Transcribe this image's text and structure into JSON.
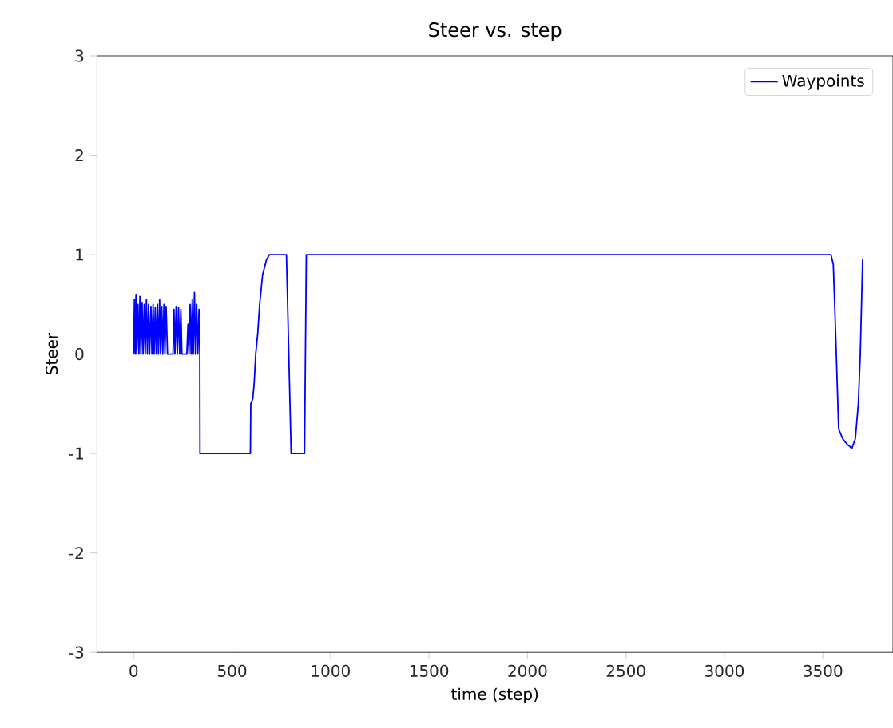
{
  "chart_data": {
    "type": "line",
    "title": "Steer vs. step",
    "xlabel": "time (step)",
    "ylabel": "Steer",
    "xlim": [
      -186,
      3856
    ],
    "ylim": [
      -3,
      3
    ],
    "xticks": [
      0,
      500,
      1000,
      1500,
      2000,
      2500,
      3000,
      3500
    ],
    "yticks": [
      -3,
      -2,
      -1,
      0,
      1,
      2,
      3
    ],
    "legend": "top right",
    "marker": "none",
    "line_style": "solid",
    "series": [
      {
        "name": "Waypoints",
        "color": "#0000ff",
        "x": [
          0,
          4,
          8,
          12,
          16,
          22,
          27,
          32,
          37,
          43,
          48,
          54,
          59,
          65,
          70,
          76,
          81,
          88,
          93,
          99,
          104,
          110,
          115,
          121,
          126,
          132,
          137,
          143,
          148,
          154,
          159,
          165,
          172,
          200,
          205,
          210,
          216,
          222,
          228,
          234,
          240,
          245,
          270,
          276,
          281,
          287,
          292,
          298,
          303,
          309,
          314,
          320,
          326,
          332,
          336,
          337,
          593,
          595,
          605,
          612,
          620,
          630,
          640,
          655,
          675,
          690,
          776,
          800,
          868,
          877,
          3541,
          3553,
          3565,
          3580,
          3600,
          3620,
          3647,
          3665,
          3680,
          3690,
          3702
        ],
        "values": [
          0,
          0.55,
          0,
          0.6,
          0,
          0.5,
          0,
          0.58,
          0,
          0.52,
          0,
          0.5,
          0,
          0.55,
          0,
          0.5,
          0,
          0.48,
          0,
          0.5,
          0,
          0.47,
          0,
          0.5,
          0,
          0.55,
          0,
          0.48,
          0,
          0.5,
          0,
          0.48,
          0,
          0,
          0.45,
          0,
          0.48,
          0,
          0.47,
          0,
          0.45,
          0,
          0,
          0.3,
          0,
          0.5,
          0,
          0.55,
          0,
          0.62,
          0,
          0.5,
          0,
          0.45,
          0,
          -1,
          -1,
          -0.5,
          -0.45,
          -0.3,
          0,
          0.2,
          0.5,
          0.8,
          0.95,
          1,
          1,
          -1,
          -1,
          1,
          1,
          0.9,
          0.2,
          -0.75,
          -0.85,
          -0.9,
          -0.95,
          -0.85,
          -0.5,
          0,
          0.96
        ]
      }
    ]
  }
}
